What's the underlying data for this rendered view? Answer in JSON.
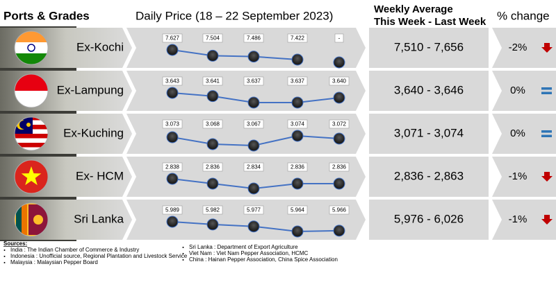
{
  "header": {
    "ports": "Ports & Grades",
    "daily": "Daily Price (18 – 22 September 2023)",
    "weekly_1": "Weekly Average",
    "weekly_2": "This Week - Last Week",
    "change": "% change"
  },
  "rows": [
    {
      "name": "Ex-Kochi",
      "prices": [
        {
          "value": 7627,
          "label": "7.627"
        },
        {
          "value": 7504,
          "label": "7.504"
        },
        {
          "value": 7486,
          "label": "7.486"
        },
        {
          "value": 7422,
          "label": "7.422"
        },
        {
          "value": null,
          "label": "-"
        }
      ],
      "weekly": "7,510 - 7,656",
      "change": "-2%",
      "trend": "down"
    },
    {
      "name": "Ex-Lampung",
      "prices": [
        {
          "value": 3643,
          "label": "3.643"
        },
        {
          "value": 3641,
          "label": "3.641"
        },
        {
          "value": 3637,
          "label": "3.637"
        },
        {
          "value": 3637,
          "label": "3.637"
        },
        {
          "value": 3640,
          "label": "3.640"
        }
      ],
      "weekly": "3,640 - 3,646",
      "change": "0%",
      "trend": "flat"
    },
    {
      "name": "Ex-Kuching",
      "prices": [
        {
          "value": 3073,
          "label": "3.073"
        },
        {
          "value": 3068,
          "label": "3.068"
        },
        {
          "value": 3067,
          "label": "3.067"
        },
        {
          "value": 3074,
          "label": "3.074"
        },
        {
          "value": 3072,
          "label": "3.072"
        }
      ],
      "weekly": "3,071 - 3,074",
      "change": "0%",
      "trend": "flat"
    },
    {
      "name": "Ex- HCM",
      "prices": [
        {
          "value": 2838,
          "label": "2.838"
        },
        {
          "value": 2836,
          "label": "2.836"
        },
        {
          "value": 2834,
          "label": "2.834"
        },
        {
          "value": 2836,
          "label": "2.836"
        },
        {
          "value": 2836,
          "label": "2.836"
        }
      ],
      "weekly": "2,836 - 2,863",
      "change": "-1%",
      "trend": "down"
    },
    {
      "name": "Sri Lanka",
      "prices": [
        {
          "value": 5989,
          "label": "5.989"
        },
        {
          "value": 5982,
          "label": "5.982"
        },
        {
          "value": 5977,
          "label": "5.977"
        },
        {
          "value": 5964,
          "label": "5.964"
        },
        {
          "value": 5966,
          "label": "5.966"
        }
      ],
      "weekly": "5,976 - 6,026",
      "change": "-1%",
      "trend": "down"
    }
  ],
  "sources": {
    "title": "Sources:",
    "left": [
      "India : The Indian Chamber of Commerce & Industry",
      "Indonesia : Unofficial source, Regional Plantation and Livestock Service",
      "Malaysia : Malaysian Pepper Board"
    ],
    "right": [
      "Sri Lanka : Department of Export Agriculture",
      "Viet Nam : Viet Nam Pepper Association, HCMC",
      "China : Hainan Pepper Association, China Spice Association"
    ]
  }
}
